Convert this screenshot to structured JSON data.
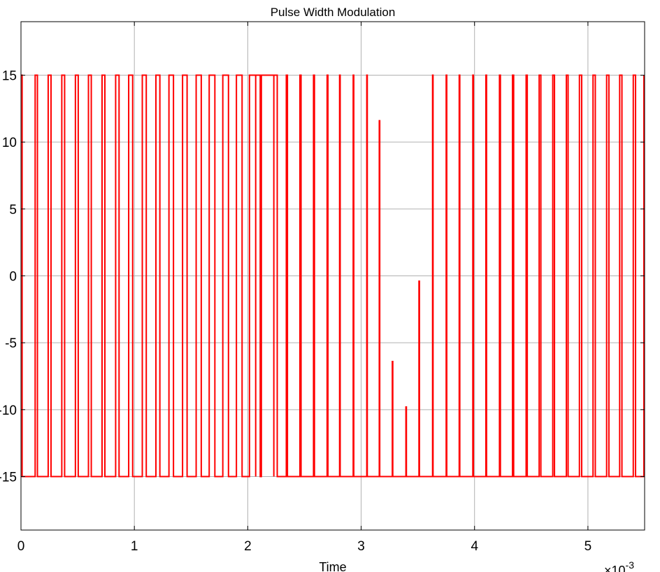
{
  "chart_data": {
    "type": "line",
    "title": "Pulse Width Modulation",
    "xlabel": "Time",
    "x_exponent_base": "×10",
    "x_exponent_power": "-3",
    "ylabel": "",
    "xlim": [
      0,
      0.0055
    ],
    "ylim": [
      -19,
      19
    ],
    "x_ticks": [
      0,
      0.001,
      0.002,
      0.003,
      0.004,
      0.005
    ],
    "x_tick_labels": [
      "0",
      "1",
      "2",
      "3",
      "4",
      "5"
    ],
    "y_ticks": [
      -15,
      -10,
      -5,
      0,
      5,
      10,
      15
    ],
    "y_tick_labels": [
      "-15",
      "-10",
      "-5",
      "0",
      "5",
      "10",
      "15"
    ],
    "grid": true,
    "legend": "none",
    "series": [
      {
        "color": "#ff0000",
        "low_level": -15,
        "high_level": 15,
        "pulses": [
          [
            0.0,
            1e-05
          ],
          [
            0.000125,
            0.000145
          ],
          [
            0.00024,
            0.000265
          ],
          [
            0.00036,
            0.000385
          ],
          [
            0.00048,
            0.000505
          ],
          [
            0.000595,
            0.00062
          ],
          [
            0.000715,
            0.00074
          ],
          [
            0.000835,
            0.000865
          ],
          [
            0.00095,
            0.000985
          ],
          [
            0.00107,
            0.001105
          ],
          [
            0.00119,
            0.001225
          ],
          [
            0.001305,
            0.001345
          ],
          [
            0.001425,
            0.001465
          ],
          [
            0.001545,
            0.00159
          ],
          [
            0.00166,
            0.00171
          ],
          [
            0.00178,
            0.00183
          ],
          [
            0.0019,
            0.00195
          ],
          [
            0.002015,
            0.00207
          ],
          [
            0.00207,
            0.00211
          ],
          [
            0.00212,
            0.00223
          ],
          [
            0.00223,
            0.00226
          ],
          [
            0.00234,
            0.00235
          ],
          [
            0.00246,
            0.00247
          ],
          [
            0.00258,
            0.002588
          ],
          [
            0.0027,
            0.002707
          ],
          [
            0.00281,
            0.002815
          ],
          [
            0.00293,
            0.002935
          ],
          [
            0.00305,
            0.003054
          ],
          [
            0.00316,
            0.003164,
            11.6
          ],
          [
            0.003275,
            0.003279,
            -6.4
          ],
          [
            0.003395,
            0.003399,
            -9.8
          ],
          [
            0.00351,
            0.003514,
            -0.4
          ],
          [
            0.00363,
            0.003634
          ],
          [
            0.00375,
            0.003755
          ],
          [
            0.003865,
            0.00387
          ],
          [
            0.003985,
            0.00399
          ],
          [
            0.0041,
            0.004106
          ],
          [
            0.00422,
            0.004228
          ],
          [
            0.004335,
            0.004345
          ],
          [
            0.004455,
            0.004465
          ],
          [
            0.00457,
            0.004585
          ],
          [
            0.00469,
            0.004705
          ],
          [
            0.00481,
            0.004825
          ],
          [
            0.004925,
            0.004945
          ],
          [
            0.005045,
            0.005065
          ],
          [
            0.005165,
            0.005185
          ],
          [
            0.00528,
            0.0053
          ],
          [
            0.0054,
            0.00542
          ]
        ]
      }
    ]
  }
}
